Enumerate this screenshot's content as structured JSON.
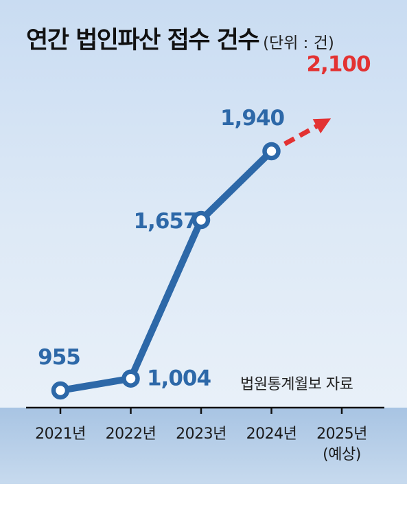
{
  "title": "연간 법인파산 접수 건수",
  "unit": "(단위 : 건)",
  "source": "법원통계월보 자료",
  "colors": {
    "line": "#2d68a8",
    "forecast": "#e33232",
    "label": "#2d68a8",
    "forecast_label": "#e33232"
  },
  "chart_data": {
    "type": "line",
    "title": "연간 법인파산 접수 건수",
    "unit": "(단위 : 건)",
    "categories": [
      "2021년",
      "2022년",
      "2023년",
      "2024년",
      "2025년"
    ],
    "category_notes": [
      "",
      "",
      "",
      "",
      "(예상)"
    ],
    "values": [
      955,
      1004,
      1657,
      1940,
      2100
    ],
    "value_labels": [
      "955",
      "1,004",
      "1,657",
      "1,940",
      "2,100"
    ],
    "forecast_from_index": 3,
    "ylim": [
      900,
      2150
    ],
    "grid": false,
    "legend": "none"
  }
}
